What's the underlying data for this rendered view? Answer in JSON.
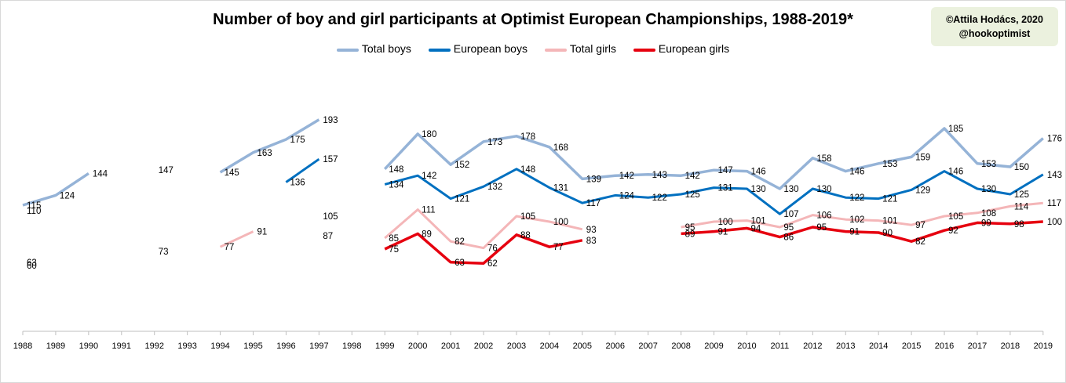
{
  "title": "Number of boy and girl participants at Optimist European Championships, 1988-2019*",
  "credit": {
    "line1": "©Attila Hodács, 2020",
    "line2": "@hookoptimist"
  },
  "colors": {
    "total_boys": "#95b3d7",
    "european_boys": "#0070c0",
    "total_girls": "#f4b6b8",
    "european_girls": "#e6000f",
    "axis": "#bfbfbf"
  },
  "legend": [
    "Total boys",
    "European boys",
    "Total girls",
    "European girls"
  ],
  "chart_data": {
    "type": "line",
    "title": "Number of boy and girl participants at Optimist European Championships, 1988-2019*",
    "xlabel": "",
    "ylabel": "",
    "ylim": [
      0,
      210
    ],
    "grid": false,
    "legend_position": "top",
    "categories": [
      "1988",
      "1989",
      "1990",
      "1991",
      "1992",
      "1993",
      "1994",
      "1995",
      "1996",
      "1997",
      "1998",
      "1999",
      "2000",
      "2001",
      "2002",
      "2003",
      "2004",
      "2005",
      "2006",
      "2007",
      "2008",
      "2009",
      "2010",
      "2011",
      "2012",
      "2013",
      "2014",
      "2015",
      "2016",
      "2017",
      "2018",
      "2019"
    ],
    "series": [
      {
        "name": "Total boys",
        "key": "total_boys",
        "width": 3.5,
        "values": [
          115,
          124,
          144,
          null,
          null,
          null,
          145,
          163,
          175,
          193,
          null,
          148,
          180,
          152,
          173,
          178,
          168,
          139,
          142,
          143,
          142,
          147,
          146,
          130,
          158,
          146,
          153,
          159,
          185,
          153,
          150,
          176
        ]
      },
      {
        "name": "European boys",
        "key": "european_boys",
        "width": 3,
        "values": [
          null,
          null,
          null,
          null,
          null,
          null,
          null,
          null,
          136,
          157,
          null,
          134,
          142,
          121,
          132,
          148,
          131,
          117,
          124,
          122,
          125,
          131,
          130,
          107,
          130,
          122,
          121,
          129,
          146,
          130,
          125,
          143
        ]
      },
      {
        "name": "Total girls",
        "key": "total_girls",
        "width": 3,
        "values": [
          null,
          null,
          null,
          null,
          null,
          null,
          77,
          91,
          null,
          null,
          null,
          85,
          111,
          82,
          76,
          105,
          100,
          93,
          null,
          null,
          95,
          100,
          101,
          95,
          106,
          102,
          101,
          97,
          105,
          108,
          114,
          117
        ]
      },
      {
        "name": "European girls",
        "key": "european_girls",
        "width": 3.5,
        "values": [
          null,
          null,
          null,
          null,
          null,
          null,
          null,
          null,
          null,
          null,
          null,
          75,
          89,
          63,
          62,
          88,
          77,
          83,
          null,
          null,
          89,
          91,
          94,
          86,
          95,
          91,
          90,
          82,
          92,
          99,
          98,
          100
        ]
      }
    ],
    "extra_labels": [
      {
        "x": "1988",
        "value": 110
      },
      {
        "x": "1988",
        "value": 63
      },
      {
        "x": "1988",
        "value": 60
      },
      {
        "x": "1992",
        "value": 147
      },
      {
        "x": "1992",
        "value": 73
      },
      {
        "x": "1997",
        "value": 105
      },
      {
        "x": "1997",
        "value": 87
      }
    ]
  }
}
